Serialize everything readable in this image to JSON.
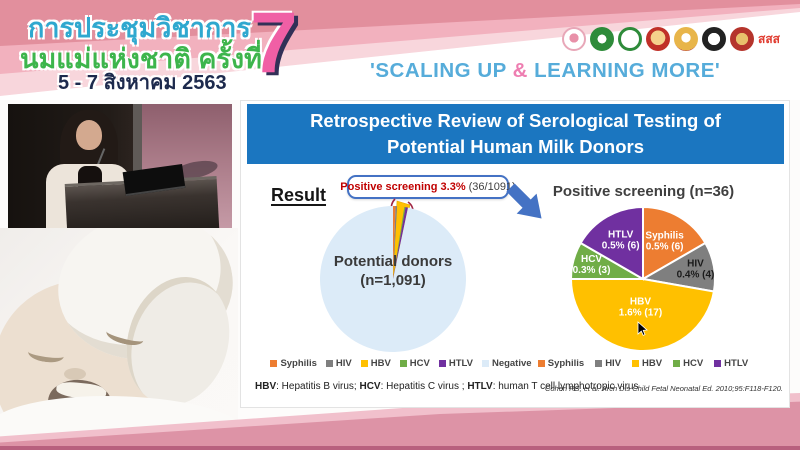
{
  "header": {
    "title_line1": "การประชุมวิชาการ",
    "title_line2": "นมแม่แห่งชาติ ครั้งที่",
    "date_line": "5 - 7 สิงหาคม 2563",
    "edition_number": "7",
    "tagline_open": "'SCALING UP ",
    "tagline_amp": "&",
    "tagline_close": " LEARNING MORE'",
    "sss_logo_text": "สสส"
  },
  "slide": {
    "title": "Retrospective Review of Serological Testing of Potential Human Milk Donors",
    "result_label": "Result",
    "callout_highlight": "Positive screening 3.3%",
    "callout_detail": "(36/1091)",
    "footnote": {
      "hbv_abbr": "HBV",
      "hbv_text": ": Hepatitis B virus; ",
      "hcv_abbr": "HCV",
      "hcv_text": ": Hepatitis C virus ; ",
      "htlv_abbr": "HTLV",
      "htlv_text": ": human T cell lymphotropic virus"
    },
    "citation": "Cohen RS, et al. Arch Dis Child Fetal Neonatal Ed. 2010;95:F118-F120."
  },
  "colors": {
    "title_bar": "#1B76C0",
    "callout_border": "#4472C4",
    "callout_text": "#C00000",
    "arrow": "#4472C4",
    "tagline": "#56ACDA",
    "tagline_amp": "#EE7EB1"
  },
  "chart_data": [
    {
      "type": "pie",
      "title": "Potential donors (n=1,091)",
      "center_label_line1": "Potential donors",
      "center_label_line2": "(n=1,091)",
      "annotation": "Positive screening 3.3% (36/1091)",
      "total": 1091,
      "show_labels": false,
      "slice_gap": 0,
      "legend_position": "bottom",
      "slices": [
        {
          "label": "Syphilis",
          "value": 6,
          "color": "#ED7D31"
        },
        {
          "label": "HIV",
          "value": 4,
          "color": "#7F7F7F"
        },
        {
          "label": "HBV",
          "value": 17,
          "color": "#FFC000"
        },
        {
          "label": "HCV",
          "value": 3,
          "color": "#70AD47"
        },
        {
          "label": "HTLV",
          "value": 6,
          "color": "#7030A0"
        },
        {
          "label": "Negative",
          "value": 1055,
          "color": "#DCEBF8"
        }
      ]
    },
    {
      "type": "pie",
      "title": "Positive screening (n=36)",
      "total": 36,
      "show_labels": true,
      "slice_gap": 2,
      "legend_position": "bottom",
      "slices": [
        {
          "label": "Syphilis",
          "pct": "0.5%",
          "value": 6,
          "color": "#ED7D31",
          "label_color": "#ffffff",
          "label_r": 0.6
        },
        {
          "label": "HIV",
          "pct": "0.4%",
          "value": 4,
          "color": "#7F7F7F",
          "label_color": "#1a1a1a",
          "label_r": 0.74
        },
        {
          "label": "HBV",
          "pct": "1.6%",
          "value": 17,
          "color": "#FFC000",
          "label_color": "#ffffff",
          "label_r": 0.4
        },
        {
          "label": "HCV",
          "pct": "0.3%",
          "value": 3,
          "color": "#70AD47",
          "label_color": "#ffffff",
          "label_r": 0.74
        },
        {
          "label": "HTLV",
          "pct": "0.5%",
          "value": 6,
          "color": "#7030A0",
          "label_color": "#ffffff",
          "label_r": 0.62
        }
      ]
    }
  ]
}
